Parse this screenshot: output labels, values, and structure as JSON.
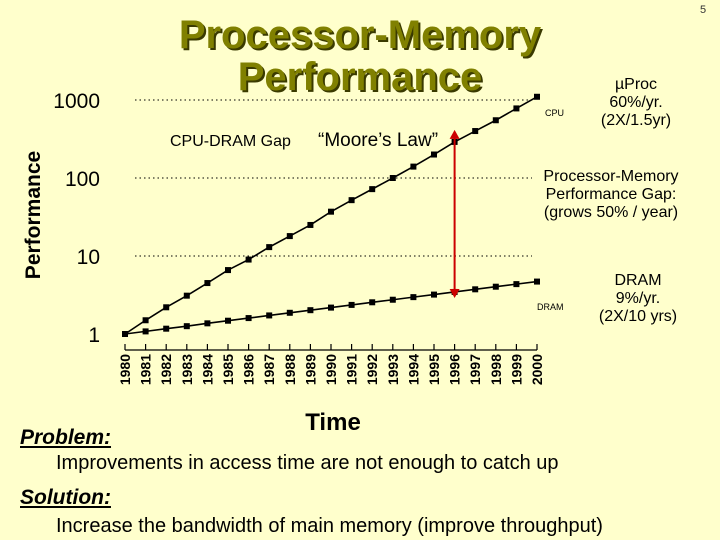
{
  "slide": {
    "title_line1": "Processor-Memory",
    "title_line2": "Performance",
    "page_number": "5"
  },
  "annotations": {
    "gap_label": "CPU-DRAM Gap",
    "moores_law": "“Moore’s Law”",
    "cpu_label": "CPU",
    "dram_label": "DRAM",
    "up_proc": [
      "µProc",
      "60%/yr.",
      "(2X/1.5yr)"
    ],
    "gap_note": [
      "Processor-Memory",
      "Performance Gap:",
      "(grows 50% / year)"
    ],
    "dram_note": [
      "DRAM",
      "9%/yr.",
      "(2X/10 yrs)"
    ]
  },
  "text": {
    "problem_label": "Problem:",
    "problem_text": "Improvements in access time are not enough to catch up",
    "solution_label": "Solution:",
    "solution_text": "Increase the bandwidth of main memory (improve throughput)"
  },
  "colors": {
    "title": "#808000",
    "series": "#000000",
    "gridline": "#000000",
    "gap_arrow": "#cc0000"
  },
  "chart_data": {
    "type": "line",
    "title": "",
    "xlabel": "Time",
    "ylabel": "Performance",
    "yscale": "log",
    "ylim": [
      1,
      1000
    ],
    "yticks": [
      1,
      10,
      100,
      1000
    ],
    "grid": "dotted at 10, 100, 1000",
    "x": [
      "1980",
      "1981",
      "1982",
      "1983",
      "1984",
      "1985",
      "1986",
      "1987",
      "1988",
      "1989",
      "1990",
      "1991",
      "1992",
      "1993",
      "1994",
      "1995",
      "1996",
      "1997",
      "1998",
      "1999",
      "2000"
    ],
    "series": [
      {
        "name": "CPU",
        "values": [
          1,
          1.5,
          2.2,
          3.1,
          4.5,
          6.6,
          9,
          13,
          18,
          25,
          37,
          52,
          72,
          100,
          140,
          200,
          290,
          400,
          550,
          780,
          1100
        ]
      },
      {
        "name": "DRAM",
        "values": [
          1,
          1.08,
          1.17,
          1.26,
          1.37,
          1.48,
          1.6,
          1.73,
          1.87,
          2.02,
          2.18,
          2.36,
          2.55,
          2.75,
          2.97,
          3.2,
          3.46,
          3.74,
          4.04,
          4.36,
          4.7
        ]
      }
    ],
    "gap_marker_x": "1996"
  }
}
